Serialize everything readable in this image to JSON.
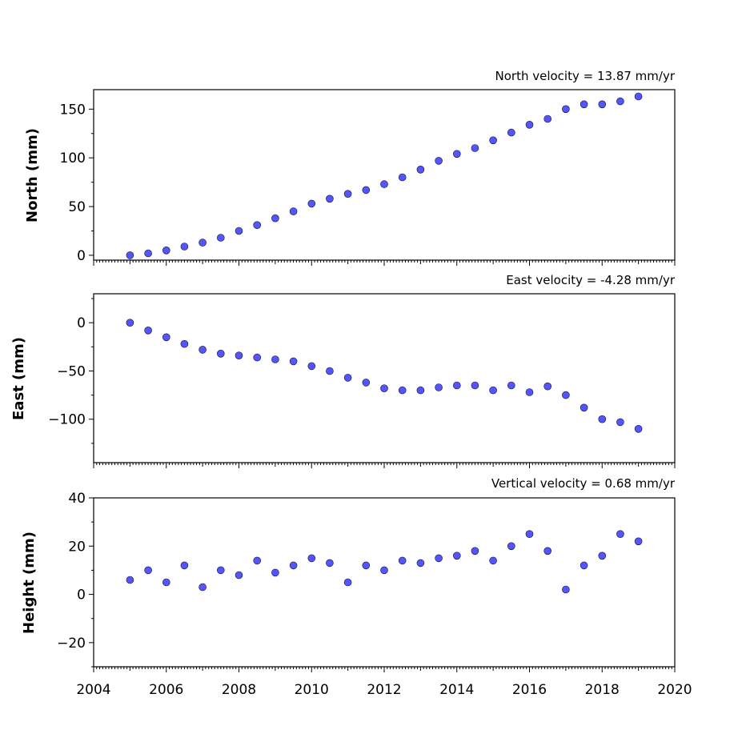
{
  "chart_data": [
    {
      "type": "scatter",
      "title": "North velocity = 13.87 mm/yr",
      "ylabel": "North (mm)",
      "xlim": [
        2004,
        2020
      ],
      "ylim": [
        -5,
        170
      ],
      "yticks": [
        0,
        50,
        100,
        150
      ],
      "show_xticklabels": false,
      "series": [
        {
          "x": [
            2005.0,
            2005.5,
            2006.0,
            2006.5,
            2007.0,
            2007.5,
            2008.0,
            2008.5,
            2009.0,
            2009.5,
            2010.0,
            2010.5,
            2011.0,
            2011.5,
            2012.0,
            2012.5,
            2013.0,
            2013.5,
            2014.0,
            2014.5,
            2015.0,
            2015.5,
            2016.0,
            2016.5,
            2017.0,
            2017.5,
            2018.0,
            2018.5,
            2019.0
          ],
          "y": [
            0,
            2,
            5,
            9,
            13,
            18,
            25,
            31,
            38,
            45,
            53,
            58,
            63,
            67,
            73,
            80,
            88,
            97,
            104,
            110,
            118,
            126,
            134,
            140,
            150,
            155,
            155,
            158,
            163
          ]
        }
      ]
    },
    {
      "type": "scatter",
      "title": "East velocity = -4.28 mm/yr",
      "ylabel": "East (mm)",
      "xlim": [
        2004,
        2020
      ],
      "ylim": [
        -145,
        30
      ],
      "yticks": [
        0,
        -50,
        -100
      ],
      "show_xticklabels": false,
      "series": [
        {
          "x": [
            2005.0,
            2005.5,
            2006.0,
            2006.5,
            2007.0,
            2007.5,
            2008.0,
            2008.5,
            2009.0,
            2009.5,
            2010.0,
            2010.5,
            2011.0,
            2011.5,
            2012.0,
            2012.5,
            2013.0,
            2013.5,
            2014.0,
            2014.5,
            2015.0,
            2015.5,
            2016.0,
            2016.5,
            2017.0,
            2017.5,
            2018.0,
            2018.5,
            2019.0
          ],
          "y": [
            0,
            -8,
            -15,
            -22,
            -28,
            -32,
            -34,
            -36,
            -38,
            -40,
            -45,
            -50,
            -57,
            -62,
            -68,
            -70,
            -70,
            -67,
            -65,
            -65,
            -70,
            -65,
            -72,
            -66,
            -75,
            -88,
            -100,
            -103,
            -110
          ]
        }
      ]
    },
    {
      "type": "scatter",
      "title": "Vertical velocity = 0.68 mm/yr",
      "ylabel": "Height (mm)",
      "xlim": [
        2004,
        2020
      ],
      "ylim": [
        -30,
        40
      ],
      "yticks": [
        40,
        20,
        0,
        -20
      ],
      "xticks": [
        2004,
        2006,
        2008,
        2010,
        2012,
        2014,
        2016,
        2018,
        2020
      ],
      "show_xticklabels": true,
      "series": [
        {
          "x": [
            2005.0,
            2005.5,
            2006.0,
            2006.5,
            2007.0,
            2007.5,
            2008.0,
            2008.5,
            2009.0,
            2009.5,
            2010.0,
            2010.5,
            2011.0,
            2011.5,
            2012.0,
            2012.5,
            2013.0,
            2013.5,
            2014.0,
            2014.5,
            2015.0,
            2015.5,
            2016.0,
            2016.5,
            2017.0,
            2017.5,
            2018.0,
            2018.5,
            2019.0
          ],
          "y": [
            6,
            10,
            5,
            12,
            3,
            10,
            8,
            14,
            9,
            12,
            15,
            13,
            5,
            12,
            10,
            14,
            13,
            15,
            16,
            18,
            14,
            20,
            25,
            18,
            2,
            12,
            16,
            25,
            22
          ]
        }
      ]
    }
  ]
}
